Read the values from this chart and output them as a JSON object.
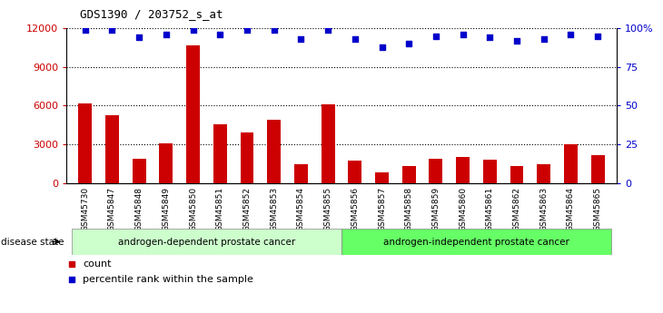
{
  "title": "GDS1390 / 203752_s_at",
  "categories": [
    "GSM45730",
    "GSM45847",
    "GSM45848",
    "GSM45849",
    "GSM45850",
    "GSM45851",
    "GSM45852",
    "GSM45853",
    "GSM45854",
    "GSM45855",
    "GSM45856",
    "GSM45857",
    "GSM45858",
    "GSM45859",
    "GSM45860",
    "GSM45861",
    "GSM45862",
    "GSM45863",
    "GSM45864",
    "GSM45865"
  ],
  "counts": [
    6150,
    5250,
    1900,
    3050,
    10700,
    4550,
    3900,
    4900,
    1450,
    6100,
    1750,
    800,
    1300,
    1900,
    2000,
    1800,
    1350,
    1450,
    3000,
    2200
  ],
  "percentiles": [
    99,
    99,
    94,
    96,
    99,
    96,
    99,
    99,
    93,
    99,
    93,
    88,
    90,
    95,
    96,
    94,
    92,
    93,
    96,
    95
  ],
  "group1_label": "androgen-dependent prostate cancer",
  "group1_count": 10,
  "group2_label": "androgen-independent prostate cancer",
  "group2_count": 10,
  "disease_state_label": "disease state",
  "bar_color": "#cc0000",
  "dot_color": "#0000cc",
  "ylim_left": [
    0,
    12000
  ],
  "ylim_right": [
    0,
    100
  ],
  "yticks_left": [
    0,
    3000,
    6000,
    9000,
    12000
  ],
  "yticks_right": [
    0,
    25,
    50,
    75,
    100
  ],
  "ytick_right_labels": [
    "0",
    "25",
    "50",
    "75",
    "100%"
  ],
  "grid_values": [
    3000,
    6000,
    9000,
    12000
  ],
  "background_color": "#ffffff",
  "group1_color": "#ccffcc",
  "group2_color": "#66ff66",
  "xticklabel_bg": "#d0d0d0",
  "legend_count_label": "count",
  "legend_pct_label": "percentile rank within the sample"
}
